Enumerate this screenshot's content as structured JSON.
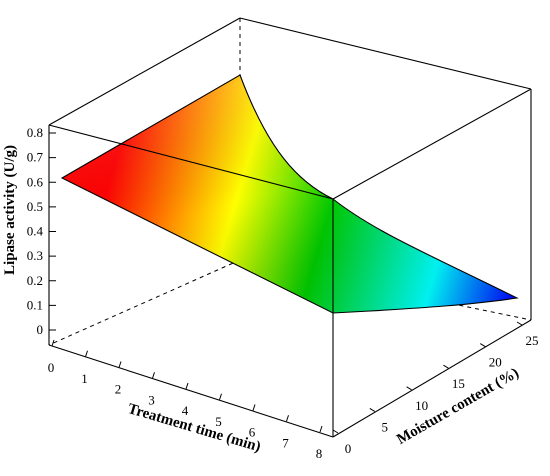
{
  "chart_data": {
    "type": "surface3d",
    "title": "",
    "zlabel": "Lipase activity (U/g)",
    "xlabel": "Treatment time (min)",
    "ylabel": "Moisture content (%)",
    "x_ticks": [
      "0",
      "1",
      "2",
      "3",
      "4",
      "5",
      "6",
      "7",
      "8"
    ],
    "y_ticks": [
      "0",
      "5",
      "10",
      "15",
      "20",
      "25"
    ],
    "z_ticks": [
      "0",
      "0.1",
      "0.2",
      "0.3",
      "0.4",
      "0.5",
      "0.6",
      "0.7",
      "0.8"
    ],
    "xlim": [
      0,
      8
    ],
    "ylim": [
      0,
      25
    ],
    "zlim": [
      0,
      0.8
    ],
    "surface_corners": [
      {
        "time": 0,
        "moisture": 0,
        "activity": 0.63
      },
      {
        "time": 0,
        "moisture": 25,
        "activity": 0.8
      },
      {
        "time": 8,
        "moisture": 0,
        "activity": 0.09
      },
      {
        "time": 8,
        "moisture": 25,
        "activity": 0.13
      }
    ],
    "colormap": [
      "#0000ff",
      "#00ffff",
      "#00cc00",
      "#ffff00",
      "#ff0000"
    ]
  }
}
